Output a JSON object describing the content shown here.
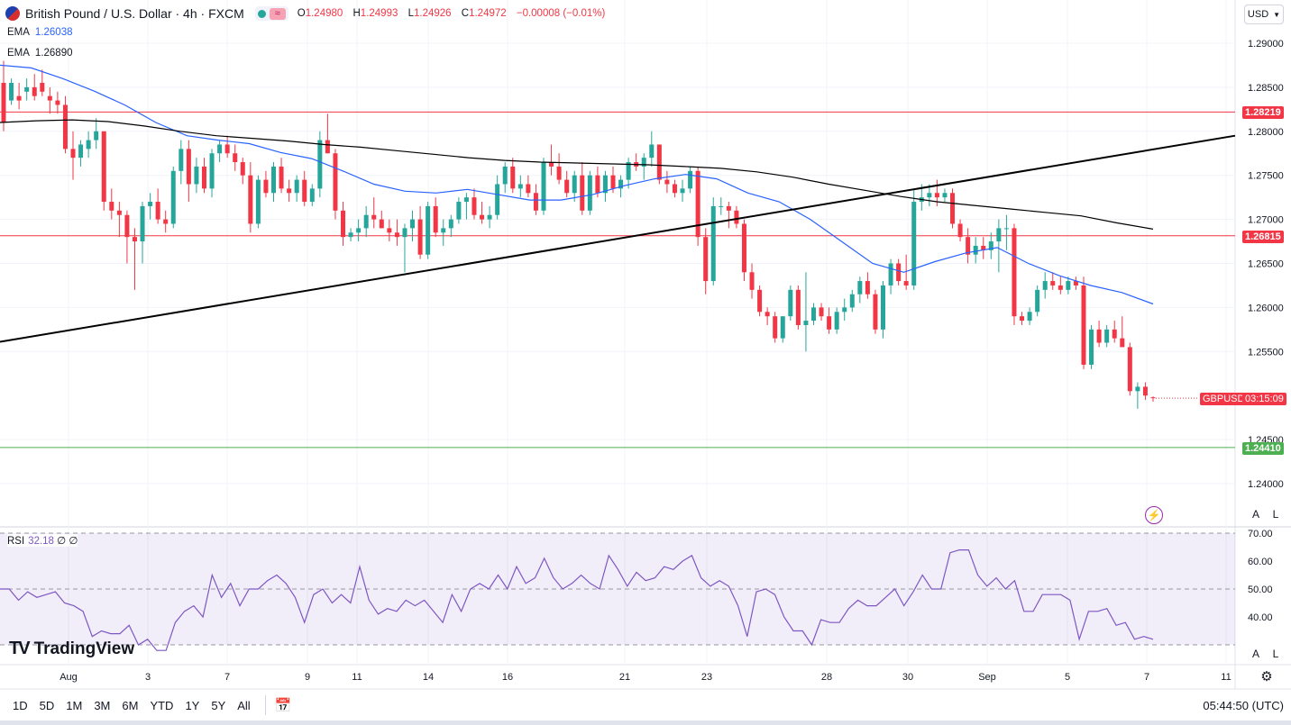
{
  "header": {
    "symbol": "British Pound / U.S. Dollar · 4h · FXCM",
    "ohlc": {
      "o_label": "O",
      "o": "1.24980",
      "h_label": "H",
      "h": "1.24993",
      "l_label": "L",
      "l": "1.24926",
      "c_label": "C",
      "c": "1.24972",
      "change": "−0.00008 (−0.01%)"
    }
  },
  "indicators": {
    "ema1": {
      "label": "EMA",
      "value": "1.26038",
      "color": "#2962ff"
    },
    "ema2": {
      "label": "EMA",
      "value": "1.26890",
      "color": "#000000"
    },
    "rsi": {
      "label": "RSI",
      "value": "32.18",
      "extra": "∅ ∅"
    }
  },
  "currency": {
    "label": "USD"
  },
  "price_tags": {
    "r1": "1.28219",
    "r2": "1.26815",
    "s1": "1.24410",
    "symbol": "GBPUSD",
    "countdown": "03:15:09"
  },
  "scale_buttons": {
    "auto": "A",
    "log": "L"
  },
  "logo": "TradingView",
  "timeframes": [
    "1D",
    "5D",
    "1M",
    "3M",
    "6M",
    "YTD",
    "1Y",
    "5Y",
    "All"
  ],
  "clock": "05:44:50 (UTC)",
  "colors": {
    "up": "#26a69a",
    "down": "#f23645",
    "ema1": "#2962ff",
    "ema2": "#000000",
    "rsi": "#7e57c2",
    "resistance": "#f23645",
    "support": "#4caf50"
  },
  "chart_data": {
    "type": "candlestick",
    "price_axis": {
      "min": 1.235,
      "max": 1.295,
      "ticks": [
        "1.29000",
        "1.28500",
        "1.28000",
        "1.27500",
        "1.27000",
        "1.26500",
        "1.26000",
        "1.25500",
        "1.24500",
        "1.24000"
      ]
    },
    "x_axis": {
      "ticks": [
        "Aug",
        "3",
        "7",
        "9",
        "11",
        "14",
        "16",
        "21",
        "23",
        "28",
        "30",
        "Sep",
        "5",
        "7",
        "11"
      ]
    },
    "horizontal_lines": [
      {
        "price": 1.28219,
        "color": "#f23645"
      },
      {
        "price": 1.26815,
        "color": "#f23645"
      },
      {
        "price": 1.2441,
        "color": "#4caf50"
      }
    ],
    "trendline": {
      "from": {
        "x": 0,
        "price": 1.2561
      },
      "to": {
        "x": 1,
        "price": 1.2795
      }
    },
    "candles": [
      [
        1.2855,
        1.288,
        1.28,
        1.281
      ],
      [
        1.2835,
        1.286,
        1.283,
        1.2855
      ],
      [
        1.284,
        1.2855,
        1.2825,
        1.2835
      ],
      [
        1.2845,
        1.286,
        1.2835,
        1.285
      ],
      [
        1.285,
        1.2865,
        1.2835,
        1.284
      ],
      [
        1.2855,
        1.287,
        1.284,
        1.2845
      ],
      [
        1.284,
        1.285,
        1.282,
        1.2835
      ],
      [
        1.2835,
        1.2845,
        1.282,
        1.283
      ],
      [
        1.283,
        1.284,
        1.2775,
        1.278
      ],
      [
        1.278,
        1.28,
        1.2745,
        1.277
      ],
      [
        1.277,
        1.279,
        1.276,
        1.2785
      ],
      [
        1.278,
        1.28,
        1.277,
        1.279
      ],
      [
        1.279,
        1.2815,
        1.278,
        1.28
      ],
      [
        1.28,
        1.28,
        1.271,
        1.272
      ],
      [
        1.272,
        1.2735,
        1.27,
        1.271
      ],
      [
        1.271,
        1.272,
        1.268,
        1.2705
      ],
      [
        1.2705,
        1.271,
        1.265,
        1.268
      ],
      [
        1.268,
        1.269,
        1.262,
        1.2675
      ],
      [
        1.2675,
        1.272,
        1.265,
        1.2715
      ],
      [
        1.2715,
        1.273,
        1.27,
        1.272
      ],
      [
        1.272,
        1.2735,
        1.2695,
        1.27
      ],
      [
        1.27,
        1.271,
        1.2685,
        1.2695
      ],
      [
        1.2695,
        1.276,
        1.269,
        1.2755
      ],
      [
        1.2755,
        1.279,
        1.274,
        1.278
      ],
      [
        1.278,
        1.279,
        1.272,
        1.274
      ],
      [
        1.274,
        1.277,
        1.273,
        1.276
      ],
      [
        1.276,
        1.277,
        1.273,
        1.2735
      ],
      [
        1.2735,
        1.278,
        1.2725,
        1.2775
      ],
      [
        1.2775,
        1.279,
        1.2765,
        1.2785
      ],
      [
        1.2785,
        1.2795,
        1.277,
        1.2775
      ],
      [
        1.2775,
        1.2785,
        1.2755,
        1.2765
      ],
      [
        1.2765,
        1.277,
        1.274,
        1.275
      ],
      [
        1.275,
        1.2765,
        1.2685,
        1.2695
      ],
      [
        1.2695,
        1.275,
        1.269,
        1.2745
      ],
      [
        1.2745,
        1.2755,
        1.2725,
        1.273
      ],
      [
        1.273,
        1.2765,
        1.272,
        1.276
      ],
      [
        1.276,
        1.277,
        1.273,
        1.2735
      ],
      [
        1.2735,
        1.2745,
        1.272,
        1.273
      ],
      [
        1.273,
        1.275,
        1.272,
        1.2745
      ],
      [
        1.2745,
        1.2755,
        1.2715,
        1.272
      ],
      [
        1.272,
        1.274,
        1.2715,
        1.2735
      ],
      [
        1.2735,
        1.28,
        1.2725,
        1.279
      ],
      [
        1.279,
        1.282,
        1.2775,
        1.2775
      ],
      [
        1.2775,
        1.278,
        1.27,
        1.271
      ],
      [
        1.271,
        1.272,
        1.267,
        1.268
      ],
      [
        1.268,
        1.269,
        1.2675,
        1.2685
      ],
      [
        1.2685,
        1.27,
        1.2675,
        1.269
      ],
      [
        1.269,
        1.2715,
        1.268,
        1.2705
      ],
      [
        1.2705,
        1.2725,
        1.269,
        1.27
      ],
      [
        1.27,
        1.271,
        1.269,
        1.269
      ],
      [
        1.269,
        1.27,
        1.2675,
        1.2685
      ],
      [
        1.2685,
        1.27,
        1.267,
        1.268
      ],
      [
        1.268,
        1.2695,
        1.264,
        1.269
      ],
      [
        1.269,
        1.271,
        1.2675,
        1.27
      ],
      [
        1.27,
        1.2715,
        1.2655,
        1.266
      ],
      [
        1.266,
        1.272,
        1.2655,
        1.2715
      ],
      [
        1.2715,
        1.2725,
        1.268,
        1.2685
      ],
      [
        1.2685,
        1.27,
        1.267,
        1.269
      ],
      [
        1.269,
        1.2705,
        1.268,
        1.27
      ],
      [
        1.27,
        1.2725,
        1.2695,
        1.272
      ],
      [
        1.272,
        1.273,
        1.27,
        1.2725
      ],
      [
        1.2725,
        1.2735,
        1.27,
        1.2705
      ],
      [
        1.2705,
        1.272,
        1.2695,
        1.27
      ],
      [
        1.27,
        1.2715,
        1.269,
        1.2705
      ],
      [
        1.2705,
        1.275,
        1.27,
        1.274
      ],
      [
        1.274,
        1.2765,
        1.273,
        1.276
      ],
      [
        1.276,
        1.277,
        1.273,
        1.2735
      ],
      [
        1.2735,
        1.275,
        1.2725,
        1.274
      ],
      [
        1.274,
        1.275,
        1.2725,
        1.273
      ],
      [
        1.273,
        1.274,
        1.2705,
        1.271
      ],
      [
        1.271,
        1.277,
        1.2705,
        1.2765
      ],
      [
        1.2765,
        1.2785,
        1.275,
        1.276
      ],
      [
        1.276,
        1.2775,
        1.274,
        1.2745
      ],
      [
        1.2745,
        1.2755,
        1.2725,
        1.273
      ],
      [
        1.273,
        1.2755,
        1.272,
        1.275
      ],
      [
        1.275,
        1.2765,
        1.2705,
        1.271
      ],
      [
        1.271,
        1.2755,
        1.2705,
        1.275
      ],
      [
        1.275,
        1.276,
        1.2725,
        1.273
      ],
      [
        1.273,
        1.2755,
        1.272,
        1.275
      ],
      [
        1.275,
        1.276,
        1.273,
        1.2735
      ],
      [
        1.2735,
        1.275,
        1.2725,
        1.2745
      ],
      [
        1.2745,
        1.277,
        1.2735,
        1.2765
      ],
      [
        1.2765,
        1.2775,
        1.2755,
        1.276
      ],
      [
        1.276,
        1.2775,
        1.2745,
        1.277
      ],
      [
        1.277,
        1.28,
        1.276,
        1.2785
      ],
      [
        1.2785,
        1.2785,
        1.274,
        1.2745
      ],
      [
        1.2745,
        1.2755,
        1.273,
        1.274
      ],
      [
        1.274,
        1.2745,
        1.2725,
        1.273
      ],
      [
        1.273,
        1.2745,
        1.272,
        1.2735
      ],
      [
        1.2735,
        1.276,
        1.273,
        1.2755
      ],
      [
        1.2755,
        1.276,
        1.267,
        1.268
      ],
      [
        1.268,
        1.269,
        1.2615,
        1.263
      ],
      [
        1.263,
        1.2725,
        1.2625,
        1.2715
      ],
      [
        1.2715,
        1.2725,
        1.2705,
        1.2715
      ],
      [
        1.2715,
        1.272,
        1.269,
        1.271
      ],
      [
        1.271,
        1.2715,
        1.269,
        1.2695
      ],
      [
        1.2695,
        1.27,
        1.263,
        1.264
      ],
      [
        1.264,
        1.265,
        1.261,
        1.262
      ],
      [
        1.262,
        1.2625,
        1.259,
        1.2595
      ],
      [
        1.2595,
        1.26,
        1.258,
        1.259
      ],
      [
        1.259,
        1.2595,
        1.256,
        1.2565
      ],
      [
        1.2565,
        1.259,
        1.256,
        1.259
      ],
      [
        1.259,
        1.2625,
        1.2585,
        1.262
      ],
      [
        1.262,
        1.2625,
        1.2575,
        1.258
      ],
      [
        1.258,
        1.264,
        1.255,
        1.2585
      ],
      [
        1.2585,
        1.2605,
        1.258,
        1.26
      ],
      [
        1.26,
        1.2605,
        1.2585,
        1.259
      ],
      [
        1.259,
        1.26,
        1.257,
        1.2575
      ],
      [
        1.2575,
        1.26,
        1.257,
        1.2595
      ],
      [
        1.2595,
        1.261,
        1.2585,
        1.26
      ],
      [
        1.26,
        1.262,
        1.2595,
        1.2615
      ],
      [
        1.2615,
        1.2635,
        1.2605,
        1.263
      ],
      [
        1.263,
        1.264,
        1.261,
        1.2615
      ],
      [
        1.2615,
        1.262,
        1.257,
        1.2575
      ],
      [
        1.2575,
        1.263,
        1.2565,
        1.2625
      ],
      [
        1.2625,
        1.2655,
        1.2615,
        1.265
      ],
      [
        1.265,
        1.2655,
        1.2625,
        1.263
      ],
      [
        1.263,
        1.266,
        1.262,
        1.2625
      ],
      [
        1.2625,
        1.2735,
        1.262,
        1.272
      ],
      [
        1.272,
        1.274,
        1.271,
        1.2725
      ],
      [
        1.2725,
        1.274,
        1.2715,
        1.273
      ],
      [
        1.273,
        1.2745,
        1.2715,
        1.2725
      ],
      [
        1.2725,
        1.2735,
        1.272,
        1.273
      ],
      [
        1.273,
        1.2735,
        1.269,
        1.2695
      ],
      [
        1.2695,
        1.27,
        1.2675,
        1.268
      ],
      [
        1.268,
        1.269,
        1.265,
        1.266
      ],
      [
        1.266,
        1.268,
        1.265,
        1.267
      ],
      [
        1.267,
        1.268,
        1.2655,
        1.2665
      ],
      [
        1.2665,
        1.2685,
        1.2655,
        1.2675
      ],
      [
        1.2675,
        1.27,
        1.264,
        1.269
      ],
      [
        1.269,
        1.2705,
        1.2665,
        1.269
      ],
      [
        1.269,
        1.2695,
        1.258,
        1.259
      ],
      [
        1.259,
        1.2595,
        1.258,
        1.2585
      ],
      [
        1.2585,
        1.26,
        1.258,
        1.2595
      ],
      [
        1.2595,
        1.2625,
        1.259,
        1.262
      ],
      [
        1.262,
        1.264,
        1.261,
        1.263
      ],
      [
        1.263,
        1.264,
        1.262,
        1.2625
      ],
      [
        1.2625,
        1.2635,
        1.2615,
        1.262
      ],
      [
        1.262,
        1.2635,
        1.2615,
        1.263
      ],
      [
        1.263,
        1.2635,
        1.262,
        1.2625
      ],
      [
        1.2625,
        1.2635,
        1.253,
        1.2535
      ],
      [
        1.2535,
        1.258,
        1.253,
        1.2575
      ],
      [
        1.2575,
        1.2585,
        1.2555,
        1.256
      ],
      [
        1.256,
        1.258,
        1.2555,
        1.2575
      ],
      [
        1.2575,
        1.2585,
        1.256,
        1.2565
      ],
      [
        1.2565,
        1.259,
        1.2555,
        1.2555
      ],
      [
        1.2555,
        1.256,
        1.25,
        1.2505
      ],
      [
        1.2505,
        1.2515,
        1.2485,
        1.251
      ],
      [
        1.251,
        1.2515,
        1.2495,
        1.25
      ],
      [
        1.2498,
        1.2499,
        1.2493,
        1.2497
      ]
    ],
    "ema_fast": [
      1.2875,
      1.2872,
      1.286,
      1.2846,
      1.283,
      1.281,
      1.2795,
      1.279,
      1.2786,
      1.2776,
      1.2769,
      1.2755,
      1.274,
      1.2732,
      1.273,
      1.2734,
      1.2728,
      1.2722,
      1.2722,
      1.2728,
      1.2738,
      1.2746,
      1.2751,
      1.2746,
      1.273,
      1.272,
      1.27,
      1.2675,
      1.265,
      1.264,
      1.2652,
      1.2662,
      1.2668,
      1.265,
      1.2636,
      1.2625,
      1.2617,
      1.2604
    ],
    "ema_slow": [
      1.281,
      1.2812,
      1.2813,
      1.2811,
      1.2806,
      1.28,
      1.2795,
      1.2792,
      1.2789,
      1.2785,
      1.2782,
      1.2778,
      1.2774,
      1.277,
      1.2767,
      1.2765,
      1.2764,
      1.2763,
      1.2762,
      1.276,
      1.2758,
      1.2754,
      1.2748,
      1.274,
      1.2733,
      1.2726,
      1.272,
      1.2716,
      1.2712,
      1.2708,
      1.2704,
      1.2696,
      1.2689
    ],
    "rsi": {
      "min": 20,
      "max": 70,
      "ticks": [
        "70.00",
        "60.00",
        "50.00",
        "40.00"
      ],
      "overbought": 70,
      "oversold": 30,
      "mid": 50,
      "values": [
        50,
        50,
        46,
        49,
        47,
        48,
        49,
        45,
        44,
        42,
        33,
        35,
        34,
        34,
        37,
        30,
        32,
        28,
        28,
        38,
        42,
        44,
        40,
        55,
        47,
        52,
        44,
        50,
        50,
        53,
        55,
        52,
        47,
        38,
        48,
        50,
        45,
        48,
        45,
        58,
        46,
        41,
        43,
        42,
        46,
        44,
        46,
        42,
        38,
        48,
        42,
        50,
        52,
        50,
        55,
        50,
        58,
        52,
        54,
        61,
        54,
        50,
        52,
        55,
        52,
        50,
        62,
        57,
        51,
        56,
        53,
        54,
        58,
        57,
        60,
        62,
        54,
        51,
        53,
        51,
        44,
        33,
        49,
        50,
        48,
        40,
        35,
        35,
        30,
        39,
        38,
        38,
        43,
        46,
        44,
        44,
        47,
        50,
        44,
        49,
        55,
        50,
        50,
        63,
        64,
        64,
        55,
        51,
        54,
        50,
        53,
        42,
        42,
        48,
        48,
        48,
        46,
        32,
        42,
        42,
        43,
        37,
        38,
        32,
        33,
        32
      ]
    }
  }
}
